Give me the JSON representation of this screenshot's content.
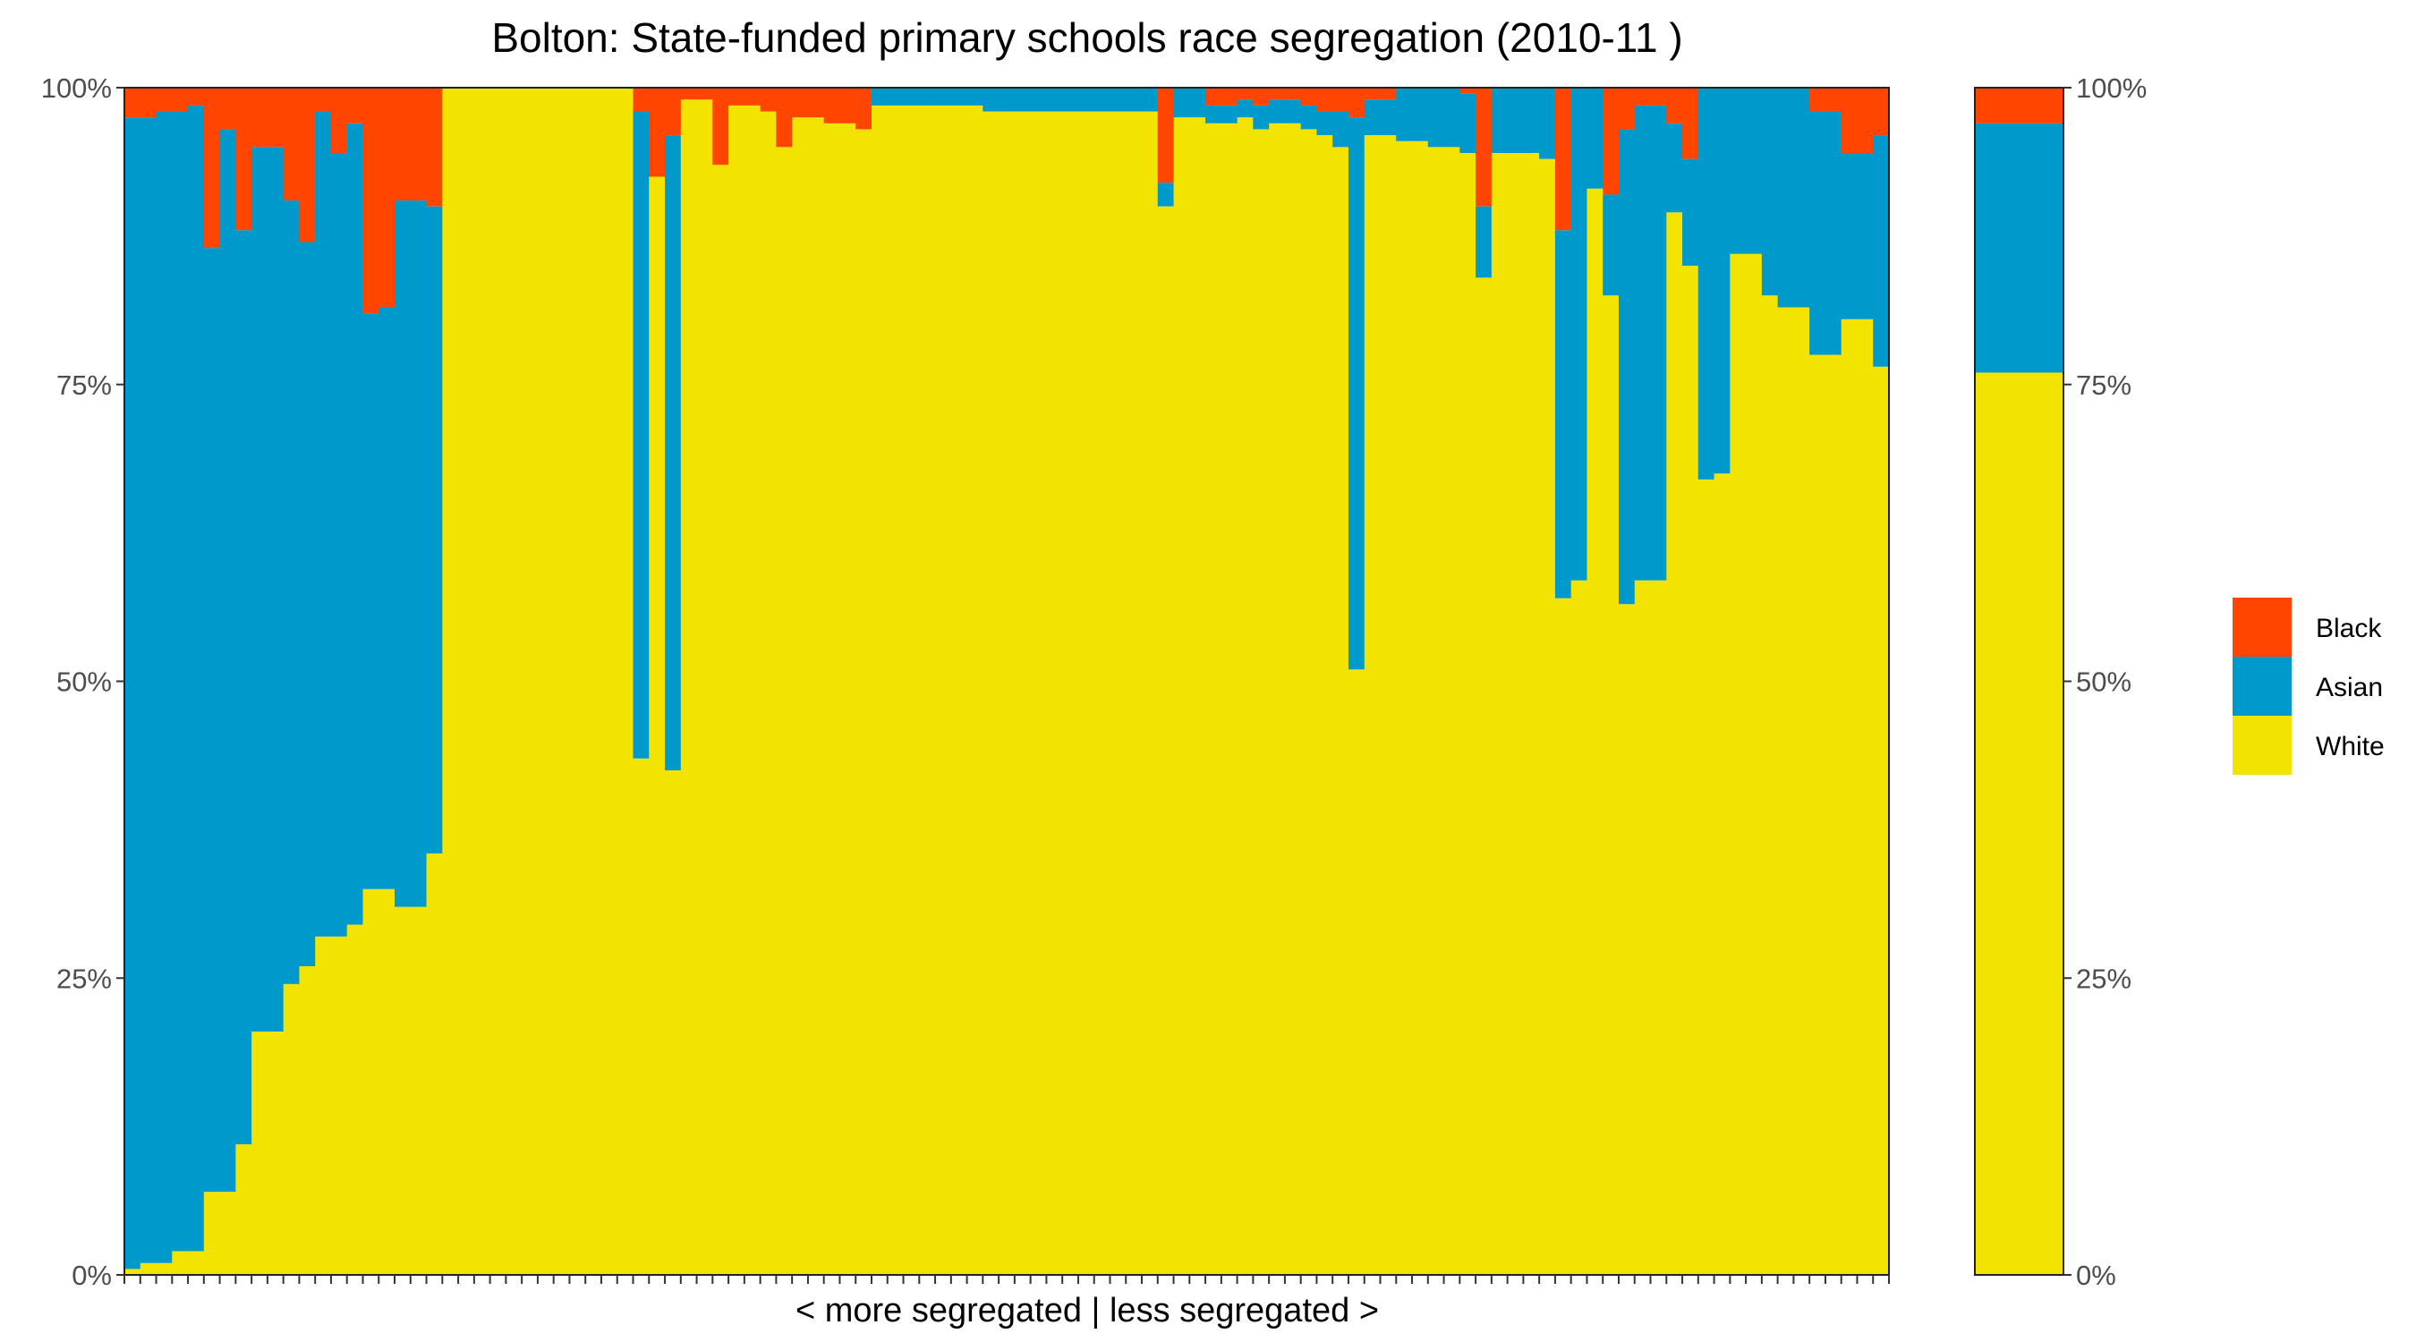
{
  "chart_data": {
    "type": "bar",
    "stacked": true,
    "title": "Bolton: State-funded primary schools race segregation (2010-11 )",
    "xlabel": "< more segregated | less segregated >",
    "ylabel": "",
    "ylim": [
      0,
      100
    ],
    "y_ticks": [
      "0%",
      "25%",
      "50%",
      "75%",
      "100%"
    ],
    "y_tick_values": [
      0,
      25,
      50,
      75,
      100
    ],
    "stack_order_bottom_to_top": [
      "White",
      "Asian",
      "Black"
    ],
    "legend": {
      "placement": "right",
      "entries": [
        {
          "name": "Black",
          "color": "#ff4500"
        },
        {
          "name": "Asian",
          "color": "#0099cc"
        },
        {
          "name": "White",
          "color": "#f2e300"
        }
      ]
    },
    "series": [
      {
        "name": "White",
        "color": "#f2e300",
        "values": [
          0.5,
          1,
          1,
          2,
          2,
          7,
          7,
          11,
          20.5,
          20.5,
          24.5,
          26,
          28.5,
          28.5,
          29.5,
          32.5,
          32.5,
          31,
          31,
          35.5,
          100,
          100,
          100,
          100,
          100,
          100,
          100,
          100,
          100,
          100,
          100,
          100,
          43.5,
          92.5,
          42.5,
          99,
          99,
          93.5,
          98.5,
          98.5,
          98,
          95,
          97.5,
          97.5,
          97,
          97,
          96.5,
          98.5,
          98.5,
          98.5,
          98.5,
          98.5,
          98.5,
          98.5,
          98,
          98,
          98,
          98,
          98,
          98,
          98,
          98,
          98,
          98,
          98,
          90,
          97.5,
          97.5,
          97,
          97,
          97.5,
          96.5,
          97,
          97,
          96.5,
          96,
          95,
          51,
          96,
          96,
          95.5,
          95.5,
          95,
          95,
          94.5,
          84,
          94.5,
          94.5,
          94.5,
          94,
          57,
          58.5,
          91.5,
          82.5,
          56.5,
          58.5,
          58.5,
          89.5,
          85,
          67,
          67.5,
          86,
          86,
          82.5,
          81.5,
          81.5,
          77.5,
          77.5,
          80.5,
          80.5,
          76.5
        ]
      },
      {
        "name": "Asian",
        "color": "#0099cc",
        "values": [
          97,
          96.5,
          97,
          96,
          96.5,
          79.5,
          89.5,
          77,
          74.5,
          74.5,
          66,
          61,
          69.5,
          66,
          67.5,
          48.5,
          49,
          59.5,
          59.5,
          54.5,
          0,
          0,
          0,
          0,
          0,
          0,
          0,
          0,
          0,
          0,
          0,
          0,
          54.5,
          0,
          53.5,
          0,
          0,
          0,
          0,
          0,
          0,
          0,
          0,
          0,
          0,
          0,
          0,
          1.5,
          1.5,
          1.5,
          1.5,
          1.5,
          1.5,
          1.5,
          2,
          2,
          2,
          2,
          2,
          2,
          2,
          2,
          2,
          2,
          2,
          2,
          2.5,
          2.5,
          1.5,
          1.5,
          1.5,
          2,
          2,
          2,
          2,
          2,
          3,
          46.5,
          3,
          3,
          4.5,
          4.5,
          5,
          5,
          5,
          6,
          5.5,
          5.5,
          5.5,
          6,
          31,
          41.5,
          8.5,
          8.5,
          40,
          40,
          40,
          7.5,
          9,
          33,
          32.5,
          14,
          14,
          17.5,
          18.5,
          18.5,
          20.5,
          20.5,
          14,
          14,
          19.5
        ]
      },
      {
        "name": "Black",
        "color": "#ff4500",
        "values": [
          2.5,
          2.5,
          2,
          2,
          1.5,
          13.5,
          3.5,
          12,
          5,
          5,
          9.5,
          13,
          2,
          5.5,
          3,
          19,
          18.5,
          9.5,
          9.5,
          10,
          0,
          0,
          0,
          0,
          0,
          0,
          0,
          0,
          0,
          0,
          0,
          0,
          2,
          7.5,
          4,
          1,
          1,
          6.5,
          1.5,
          1.5,
          2,
          5,
          2.5,
          2.5,
          3,
          3,
          3.5,
          0,
          0,
          0,
          0,
          0,
          0,
          0,
          0,
          0,
          0,
          0,
          0,
          0,
          0,
          0,
          0,
          0,
          0,
          8,
          0,
          0,
          1.5,
          1.5,
          1,
          1.5,
          1,
          1,
          1.5,
          2,
          2,
          2.5,
          1,
          1,
          0,
          0,
          0,
          0,
          0.5,
          10,
          0,
          0,
          0,
          0,
          12,
          0,
          0,
          9,
          3.5,
          1.5,
          1.5,
          3,
          6,
          0,
          0,
          0,
          0,
          0,
          0,
          0,
          2,
          2,
          5.5,
          5.5,
          4
        ]
      }
    ],
    "summary_bar": {
      "White": 76,
      "Asian": 21,
      "Black": 3
    }
  }
}
